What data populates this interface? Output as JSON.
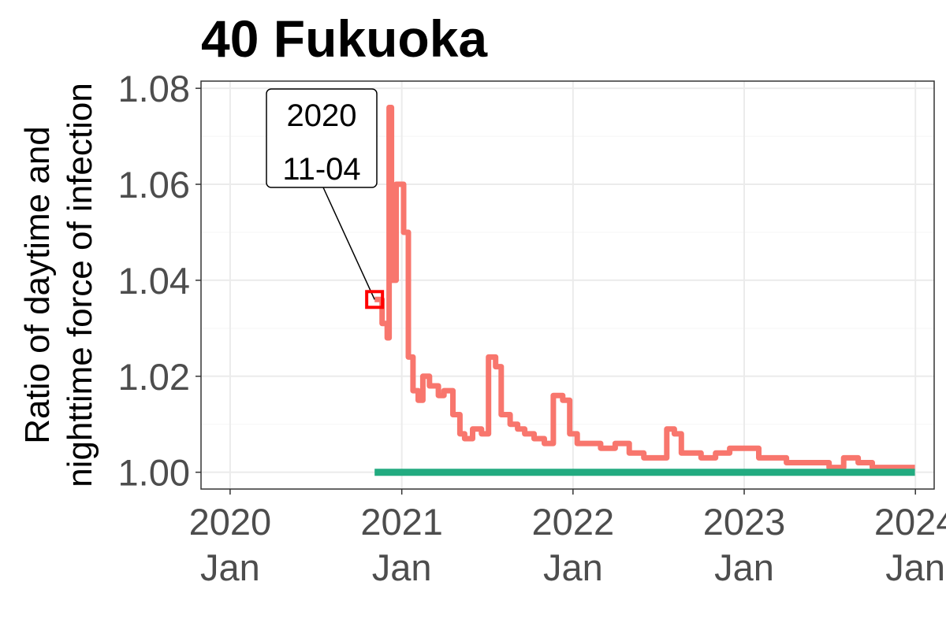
{
  "chart_data": {
    "type": "line",
    "title": "40 Fukuoka",
    "ylabel": "Ratio of daytime and\nnighttime force of infection",
    "xlabel": "",
    "x_ticks": [
      {
        "date": "2020-01-01",
        "label_top": "2020",
        "label_bottom": "Jan"
      },
      {
        "date": "2021-01-01",
        "label_top": "2021",
        "label_bottom": "Jan"
      },
      {
        "date": "2022-01-01",
        "label_top": "2022",
        "label_bottom": "Jan"
      },
      {
        "date": "2023-01-01",
        "label_top": "2023",
        "label_bottom": "Jan"
      },
      {
        "date": "2024-01-01",
        "label_top": "2024",
        "label_bottom": "Jan"
      }
    ],
    "y_ticks": [
      "1.00",
      "1.02",
      "1.04",
      "1.06",
      "1.08"
    ],
    "xlim": [
      "2019-10-31",
      "2024-02-10"
    ],
    "ylim": [
      0.9965,
      1.0815
    ],
    "grid": true,
    "series": [
      {
        "color": "#f8766d",
        "x": [
          "2020-11-04",
          "2020-11-20",
          "2020-12-01",
          "2020-12-05",
          "2020-12-10",
          "2020-12-20",
          "2021-01-05",
          "2021-01-15",
          "2021-01-25",
          "2021-02-05",
          "2021-02-15",
          "2021-03-01",
          "2021-03-20",
          "2021-04-01",
          "2021-04-20",
          "2021-05-05",
          "2021-05-15",
          "2021-06-01",
          "2021-06-20",
          "2021-07-05",
          "2021-07-20",
          "2021-08-01",
          "2021-08-20",
          "2021-09-05",
          "2021-09-20",
          "2021-10-10",
          "2021-11-01",
          "2021-11-20",
          "2021-12-10",
          "2021-12-25",
          "2022-01-10",
          "2022-02-01",
          "2022-03-01",
          "2022-04-01",
          "2022-05-01",
          "2022-06-01",
          "2022-07-01",
          "2022-07-20",
          "2022-08-05",
          "2022-08-20",
          "2022-09-10",
          "2022-10-01",
          "2022-11-01",
          "2022-12-01",
          "2023-01-01",
          "2023-02-01",
          "2023-03-01",
          "2023-04-01",
          "2023-05-01",
          "2023-06-01",
          "2023-07-01",
          "2023-08-01",
          "2023-09-01",
          "2023-10-01",
          "2023-11-01",
          "2023-12-01",
          "2023-12-31"
        ],
        "values": [
          1.036,
          1.031,
          1.028,
          1.076,
          1.04,
          1.06,
          1.05,
          1.024,
          1.017,
          1.015,
          1.02,
          1.018,
          1.016,
          1.017,
          1.012,
          1.008,
          1.007,
          1.009,
          1.008,
          1.024,
          1.022,
          1.012,
          1.01,
          1.009,
          1.008,
          1.007,
          1.006,
          1.016,
          1.015,
          1.008,
          1.006,
          1.006,
          1.005,
          1.006,
          1.004,
          1.003,
          1.003,
          1.009,
          1.008,
          1.004,
          1.004,
          1.003,
          1.004,
          1.005,
          1.005,
          1.003,
          1.003,
          1.002,
          1.002,
          1.002,
          1.001,
          1.003,
          1.002,
          1.001,
          1.001,
          1.001,
          1.001
        ]
      },
      {
        "color": "#22ab80",
        "x": [
          "2020-11-04",
          "2023-12-31"
        ],
        "values": [
          1.0,
          1.0
        ]
      }
    ],
    "annotation": {
      "date": "2020-11-04",
      "value": 1.036,
      "label_line1": "2020",
      "label_line2": "11-04"
    }
  }
}
